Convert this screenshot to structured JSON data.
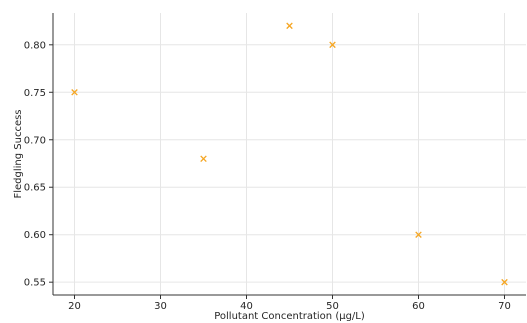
{
  "chart_data": {
    "type": "scatter",
    "title": "",
    "xlabel": "Pollutant Concentration (µg/L)",
    "ylabel": "Fledgling Success",
    "x": [
      20,
      35,
      45,
      50,
      60,
      70
    ],
    "y": [
      0.75,
      0.68,
      0.82,
      0.8,
      0.6,
      0.55
    ],
    "xlim": [
      17.5,
      72.5
    ],
    "ylim": [
      0.5365,
      0.8335
    ],
    "xticks": [
      20,
      30,
      40,
      50,
      60,
      70
    ],
    "yticks": [
      0.55,
      0.6,
      0.65,
      0.7,
      0.75,
      0.8
    ],
    "xtick_labels": [
      "20",
      "30",
      "40",
      "50",
      "60",
      "70"
    ],
    "ytick_labels": [
      "0.55",
      "0.60",
      "0.65",
      "0.70",
      "0.75",
      "0.80"
    ],
    "marker": "x",
    "marker_color": "#f5a623",
    "grid": true
  }
}
